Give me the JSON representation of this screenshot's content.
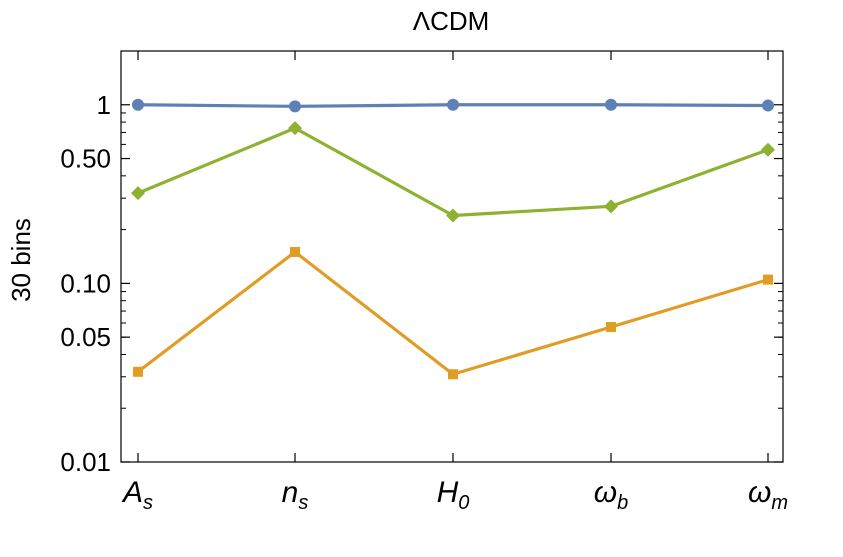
{
  "chart_data": {
    "type": "line",
    "title": "ΛCDM",
    "xlabel": "",
    "ylabel": "30 bins",
    "yscale": "log",
    "ylim": [
      0.01,
      2.0
    ],
    "grid": false,
    "legend": "none",
    "categories": [
      {
        "base": "A",
        "sub": "s"
      },
      {
        "base": "n",
        "sub": "s"
      },
      {
        "base": "H",
        "sub": "0"
      },
      {
        "base": "ω",
        "sub": "b"
      },
      {
        "base": "ω",
        "sub": "m"
      }
    ],
    "y_ticks": [
      {
        "value": 0.01,
        "label": "0.01"
      },
      {
        "value": 0.05,
        "label": "0.05"
      },
      {
        "value": 0.1,
        "label": "0.10"
      },
      {
        "value": 0.5,
        "label": "0.50"
      },
      {
        "value": 1,
        "label": "1"
      }
    ],
    "series": [
      {
        "values": [
          1.0,
          0.98,
          1.0,
          1.0,
          0.99
        ],
        "color": "#5e81b5",
        "marker": "circle"
      },
      {
        "values": [
          0.32,
          0.74,
          0.24,
          0.27,
          0.56
        ],
        "color": "#8fb131",
        "marker": "diamond"
      },
      {
        "values": [
          0.032,
          0.15,
          0.031,
          0.057,
          0.105
        ],
        "color": "#e19c24",
        "marker": "square"
      }
    ]
  }
}
